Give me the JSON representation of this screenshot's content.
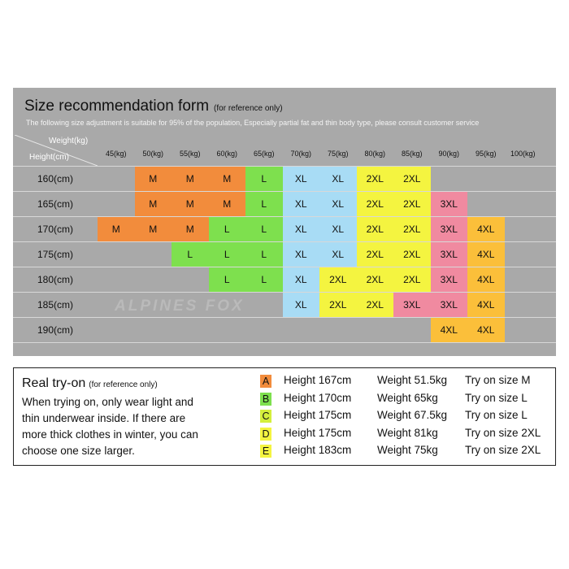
{
  "form": {
    "title": "Size recommendation form",
    "title_note": "(for reference only)",
    "subtitle": "The following size adjustment is suitable for 95% of the population, Especially partial fat and thin body type, please consult customer service",
    "corner_top": "Weight(kg)",
    "corner_bottom": "Height(cm)",
    "weights": [
      "45(kg)",
      "50(kg)",
      "55(kg)",
      "60(kg)",
      "65(kg)",
      "70(kg)",
      "75(kg)",
      "80(kg)",
      "85(kg)",
      "90(kg)",
      "95(kg)",
      "100(kg)"
    ],
    "heights": [
      "160(cm)",
      "165(cm)",
      "170(cm)",
      "175(cm)",
      "180(cm)",
      "185(cm)",
      "190(cm)"
    ],
    "rows": [
      [
        null,
        "M",
        "M",
        "M",
        "L",
        "XL",
        "XL",
        "2XL",
        "2XL",
        null,
        null,
        null
      ],
      [
        null,
        "M",
        "M",
        "M",
        "L",
        "XL",
        "XL",
        "2XL",
        "2XL",
        "3XL",
        null,
        null
      ],
      [
        "M",
        "M",
        "M",
        "L",
        "L",
        "XL",
        "XL",
        "2XL",
        "2XL",
        "3XL",
        "4XL",
        null
      ],
      [
        null,
        null,
        "L",
        "L",
        "L",
        "XL",
        "XL",
        "2XL",
        "2XL",
        "3XL",
        "4XL",
        null
      ],
      [
        null,
        null,
        null,
        "L",
        "L",
        "XL",
        "2XL",
        "2XL",
        "2XL",
        "3XL",
        "4XL",
        null
      ],
      [
        null,
        null,
        null,
        null,
        null,
        "XL",
        "2XL",
        "2XL",
        "3XL",
        "3XL",
        "4XL",
        null
      ],
      [
        null,
        null,
        null,
        null,
        null,
        null,
        null,
        null,
        null,
        "4XL",
        "4XL",
        null
      ]
    ],
    "colors": {
      "M": "#f28c3c",
      "L": "#7ee04e",
      "XL": "#a8dcf5",
      "2XL": "#f4f440",
      "3XL": "#f08aa0",
      "4XL": "#fbbf3a"
    },
    "watermark": "ALPINES FOX"
  },
  "tryon": {
    "title": "Real try-on",
    "title_note": "(for reference only)",
    "text_lines": [
      "When trying on, only wear light and",
      "thin underwear inside. If there are",
      "more thick clothes in winter, you can",
      "choose one size larger."
    ],
    "entries": [
      {
        "letter": "A",
        "color": "#f28c3c",
        "height": "Height 167cm",
        "weight": "Weight 51.5kg",
        "size": "Try on size M"
      },
      {
        "letter": "B",
        "color": "#7ee04e",
        "height": "Height 170cm",
        "weight": "Weight 65kg",
        "size": "Try on size L"
      },
      {
        "letter": "C",
        "color": "#d4ef3c",
        "height": "Height 175cm",
        "weight": "Weight 67.5kg",
        "size": "Try on size L"
      },
      {
        "letter": "D",
        "color": "#f4f440",
        "height": "Height 175cm",
        "weight": "Weight 81kg",
        "size": "Try on size 2XL"
      },
      {
        "letter": "E",
        "color": "#f4f440",
        "height": "Height 183cm",
        "weight": "Weight 75kg",
        "size": "Try on size 2XL"
      }
    ]
  }
}
